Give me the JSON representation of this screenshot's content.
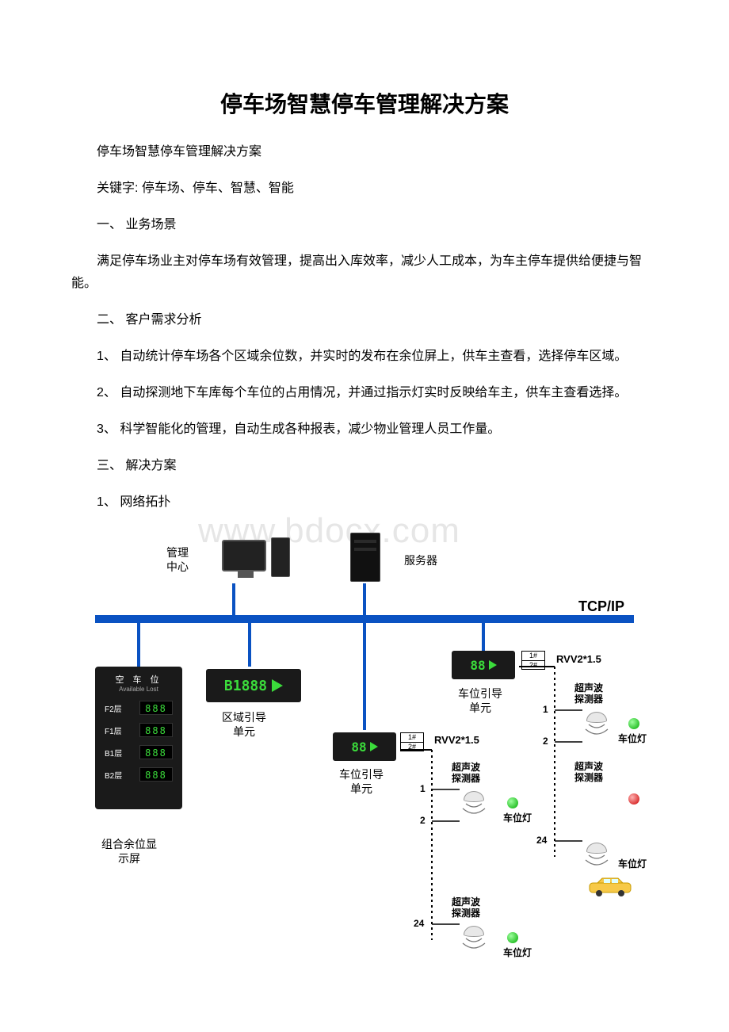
{
  "title": "停车场智慧停车管理解决方案",
  "subtitle": "停车场智慧停车管理解决方案",
  "keywords_label": "关键字: 停车场、停车、智慧、智能",
  "section1": "一、 业务场景",
  "para1": "满足停车场业主对停车场有效管理，提高出入库效率，减少人工成本，为车主停车提供给便捷与智能。",
  "section2": "二、 客户需求分析",
  "para2a": "1、 自动统计停车场各个区域余位数，并实时的发布在余位屏上，供车主查看，选择停车区域。",
  "para2b": "2、 自动探测地下车库每个车位的占用情况，并通过指示灯实时反映给车主，供车主查看选择。",
  "para2c": "3、 科学智能化的管理，自动生成各种报表，减少物业管理人员工作量。",
  "section3": "三、 解决方案",
  "para3a": "1、 网络拓扑",
  "watermark": "www.bdocx.com",
  "diagram": {
    "mgmt_center": "管理\n中心",
    "server": "服务器",
    "tcpip": "TCP/IP",
    "combo_screen": "组合余位显\n示屏",
    "region_guide": "区域引导\n单元",
    "spot_guide": "车位引导\n单元",
    "rvv": "RVV2*1.5",
    "ultrasonic": "超声波\n探测器",
    "spot_light": "车位灯",
    "conn1": "1#",
    "conn2": "2#",
    "n1": "1",
    "n2": "2",
    "n24": "24",
    "led_big_header1": "空 车 位",
    "led_big_header2": "Available Lost",
    "led_rows": [
      {
        "floor": "F2层",
        "val": "888"
      },
      {
        "floor": "F1层",
        "val": "888"
      },
      {
        "floor": "B1层",
        "val": "888"
      },
      {
        "floor": "B2层",
        "val": "888"
      }
    ],
    "region_sign_text": "B1888",
    "guide_sign_text": "88",
    "colors": {
      "bus": "#0a52c2",
      "drop": "#0a52c2",
      "led_green": "#3bdc3b",
      "bg": "#ffffff"
    }
  }
}
